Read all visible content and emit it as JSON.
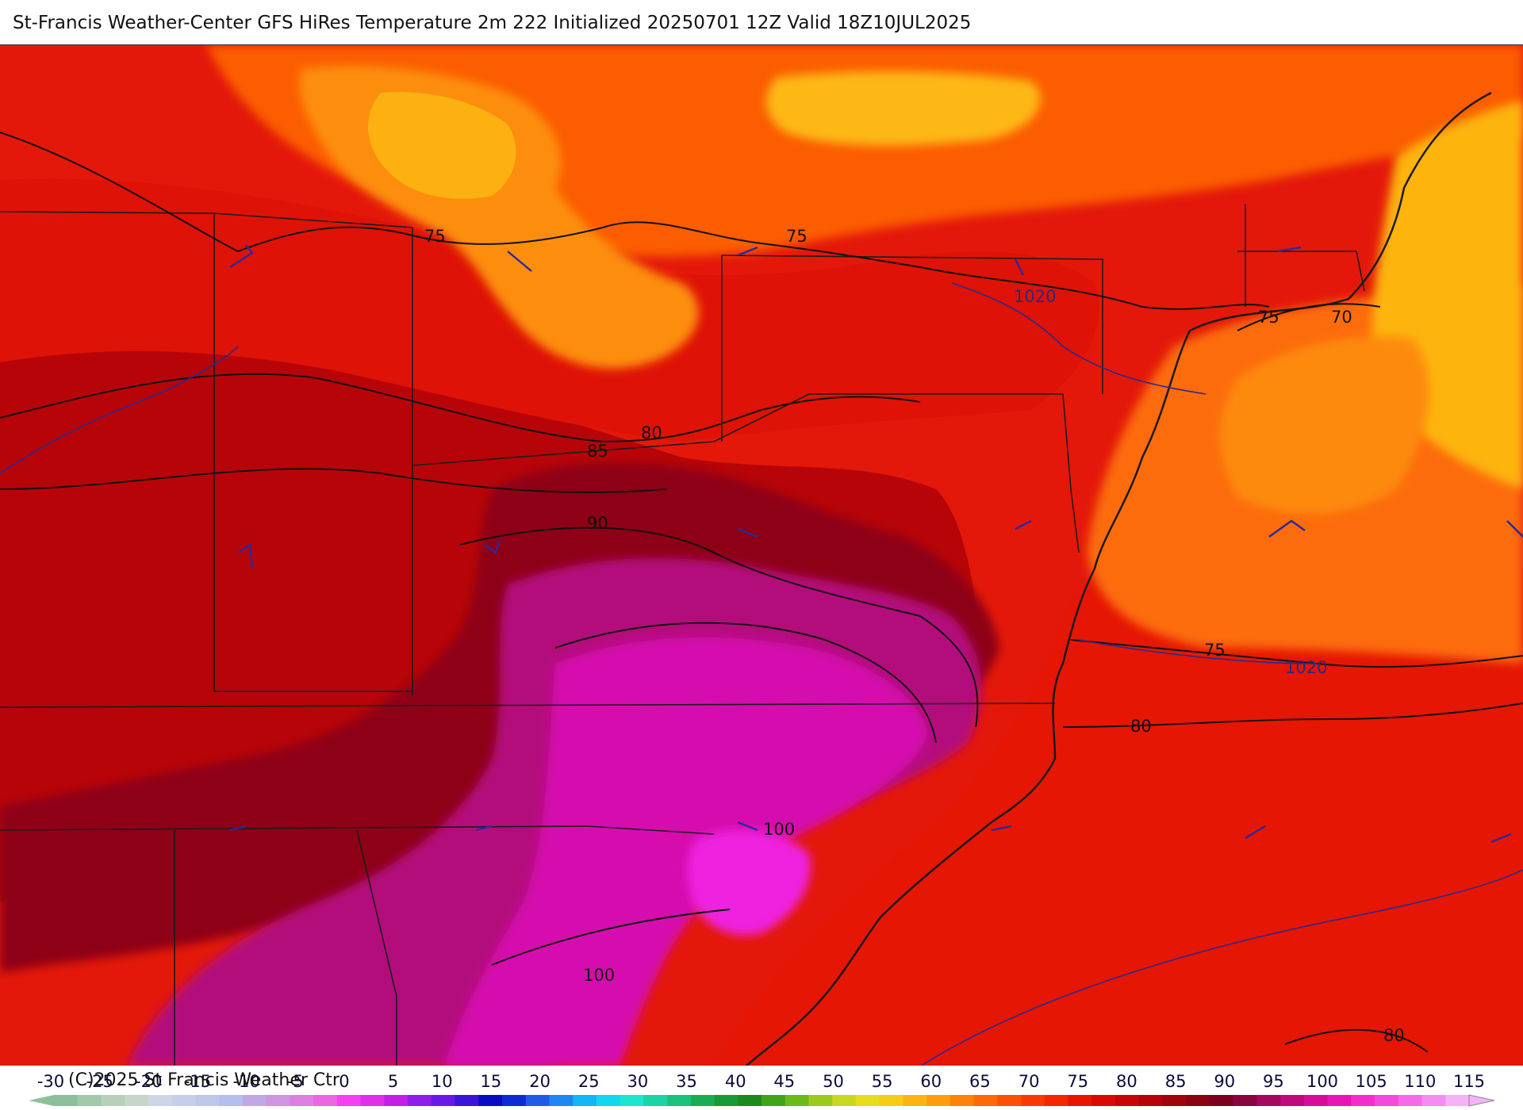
{
  "title": "St-Francis Weather-Center GFS HiRes Temperature 2m  222 Initialized 20250701 12Z Valid 18Z10JUL2025",
  "copyright": "(C)2025 St Francis Weather Ctr",
  "colorbar": {
    "ticks": [
      "-30",
      "-25",
      "-20",
      "-15",
      "-10",
      "-5",
      "0",
      "5",
      "10",
      "15",
      "20",
      "25",
      "30",
      "35",
      "40",
      "45",
      "50",
      "55",
      "60",
      "65",
      "70",
      "75",
      "80",
      "85",
      "90",
      "95",
      "100",
      "105",
      "110",
      "115"
    ],
    "colors": [
      "#8fbf9a",
      "#a3c8aa",
      "#b6d0b9",
      "#c6d6cb",
      "#ced6e6",
      "#c6cfe9",
      "#bdc7ea",
      "#b3bfec",
      "#c2a7e6",
      "#cf95e4",
      "#dd7fe3",
      "#eb66e3",
      "#f53ff0",
      "#e02fe9",
      "#c31ee6",
      "#8e1fe8",
      "#6a18e6",
      "#3a14d9",
      "#0b0bc2",
      "#0d2ad4",
      "#1f5ae8",
      "#1e86f0",
      "#12b6f2",
      "#14d6ef",
      "#1de5cf",
      "#1cd4a3",
      "#19c27c",
      "#18ad55",
      "#1a9a34",
      "#1a8a1d",
      "#3fa417",
      "#6cba1a",
      "#9cc91d",
      "#c8d81e",
      "#e6dd1c",
      "#f4cc16",
      "#fbb512",
      "#fd9c0d",
      "#fd8209",
      "#fd6906",
      "#fc5104",
      "#f83a02",
      "#f22601",
      "#e81501",
      "#da0a02",
      "#c80505",
      "#b50308",
      "#9f040c",
      "#8a0313",
      "#7a0220",
      "#8a0540",
      "#a5075f",
      "#c0097c",
      "#d80c9a",
      "#ea15b5",
      "#f22dcb",
      "#f44adb",
      "#f56ae8",
      "#f58cf1",
      "#f6b2f7"
    ]
  },
  "contour_labels": {
    "temperature": [
      "75",
      "75",
      "85",
      "80",
      "90",
      "75",
      "80",
      "100",
      "100",
      "80",
      "75",
      "70"
    ],
    "pressure": [
      "1020",
      "1020"
    ]
  },
  "colors": {
    "base_hot": "#cc0a08",
    "ocean_warm": "#e81a03",
    "orange": "#fb6a07",
    "yellow": "#fdb40f",
    "deep_red": "#a0020e",
    "maroon": "#860422",
    "purple": "#b0097a",
    "magenta": "#d410b2",
    "pink_hot": "#ee1de0",
    "boundary": "#222222",
    "isobar": "#2a2a8c"
  }
}
